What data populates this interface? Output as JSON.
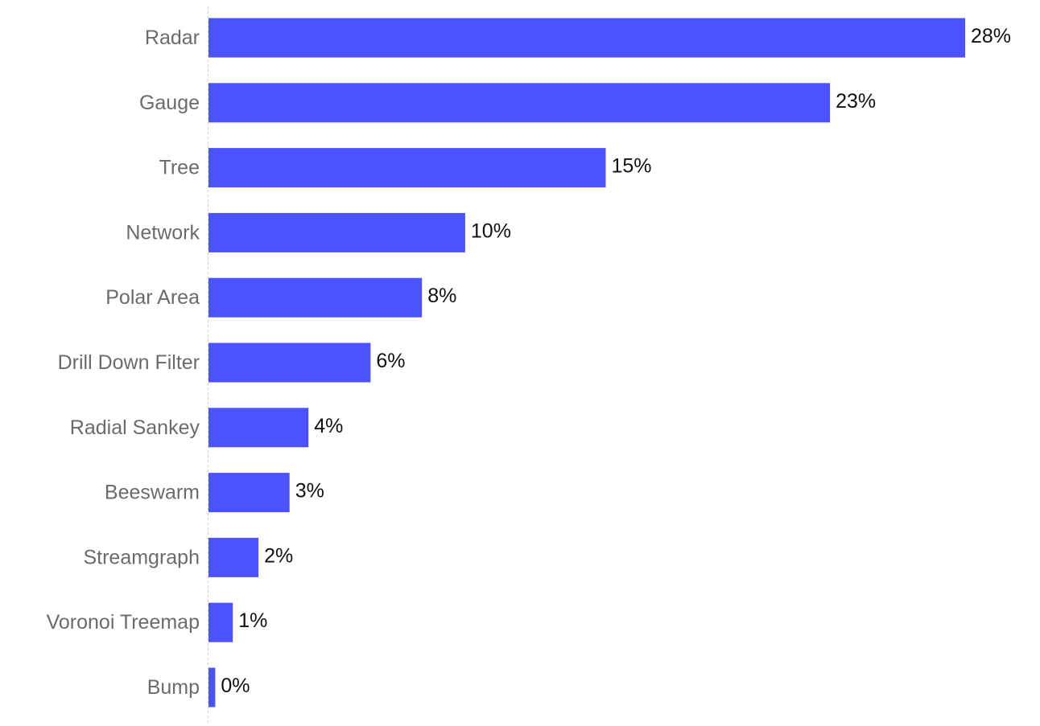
{
  "chart_data": {
    "type": "bar",
    "orientation": "horizontal",
    "categories": [
      "Radar",
      "Gauge",
      "Tree",
      "Network",
      "Polar Area",
      "Drill Down Filter",
      "Radial Sankey",
      "Beeswarm",
      "Streamgraph",
      "Voronoi Treemap",
      "Bump"
    ],
    "values": [
      28,
      23,
      14.7,
      9.5,
      7.9,
      6,
      3.7,
      3,
      1.85,
      0.9,
      0.25
    ],
    "value_labels": [
      "28%",
      "23%",
      "15%",
      "10%",
      "8%",
      "6%",
      "4%",
      "3%",
      "2%",
      "1%",
      "0%"
    ],
    "xlim": [
      0,
      28
    ],
    "grid": false,
    "legend": "none",
    "colors": {
      "bar": "#4d52ff",
      "category_text": "#6b6b6b",
      "value_text": "#111111",
      "axis": "#cfcfcf"
    }
  }
}
